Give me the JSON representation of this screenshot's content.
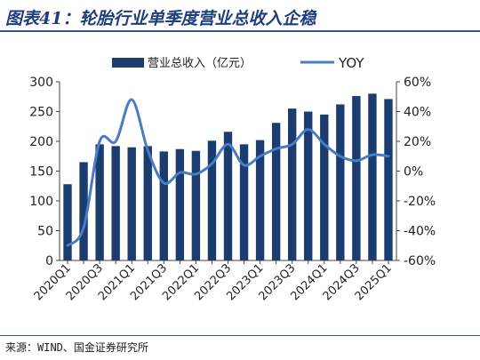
{
  "header": {
    "title": "图表41：轮胎行业单季度营业总收入企稳"
  },
  "footer": {
    "source": "来源：WIND、国金证券研究所"
  },
  "colors": {
    "bar": "#1b3c6e",
    "line": "#4a7cc4",
    "rule": "#2e5597",
    "text": "#222222"
  },
  "chart_data": {
    "type": "bar",
    "categories": [
      "2020Q1",
      "2020Q2",
      "2020Q3",
      "2020Q4",
      "2021Q1",
      "2021Q2",
      "2021Q3",
      "2021Q4",
      "2022Q1",
      "2022Q2",
      "2022Q3",
      "2022Q4",
      "2023Q1",
      "2023Q2",
      "2023Q3",
      "2023Q4",
      "2024Q1",
      "2024Q2",
      "2024Q3",
      "2024Q4",
      "2025Q1"
    ],
    "x_tick_labels": [
      "2020Q1",
      "2020Q3",
      "2021Q1",
      "2021Q3",
      "2022Q1",
      "2022Q3",
      "2023Q1",
      "2023Q3",
      "2024Q1",
      "2024Q3",
      "2025Q1"
    ],
    "series": [
      {
        "name": "营业总收入（亿元）",
        "type": "bar",
        "axis": "left",
        "values": [
          128,
          165,
          195,
          192,
          190,
          192,
          183,
          187,
          184,
          201,
          216,
          195,
          202,
          231,
          255,
          250,
          245,
          262,
          276,
          280,
          271
        ]
      },
      {
        "name": "YOY",
        "type": "line",
        "axis": "right",
        "unit": "%",
        "values": [
          -50,
          -38,
          20,
          20,
          48,
          14,
          -8,
          -1,
          -2,
          5,
          18,
          4,
          10,
          15,
          18,
          28,
          18,
          10,
          7,
          11,
          10
        ]
      }
    ],
    "y_left": {
      "min": 0,
      "max": 300,
      "ticks": [
        0,
        50,
        100,
        150,
        200,
        250,
        300
      ],
      "tick_labels": [
        "0",
        "50",
        "100",
        "150",
        "200",
        "250",
        "300"
      ]
    },
    "y_right": {
      "min": -60,
      "max": 60,
      "ticks": [
        -60,
        -40,
        -20,
        0,
        20,
        40,
        60
      ],
      "tick_labels": [
        "-60%",
        "-40%",
        "-20%",
        "0%",
        "20%",
        "40%",
        "60%"
      ]
    },
    "legend": {
      "placement": "top",
      "items": [
        "营业总收入（亿元）",
        "YOY"
      ]
    },
    "grid": false
  }
}
